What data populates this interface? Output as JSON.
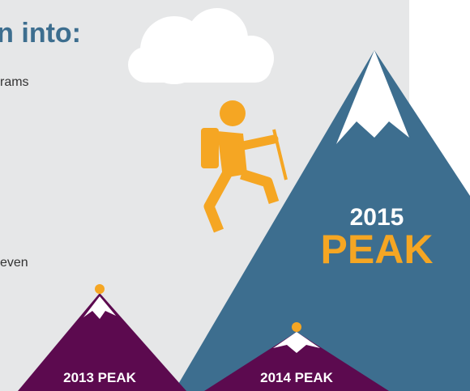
{
  "heading": "n into:",
  "text_lines": [
    "rams",
    "even"
  ],
  "peaks": [
    {
      "year": "2015",
      "label": "PEAK"
    },
    {
      "label": "2013 PEAK"
    },
    {
      "label": "2014 PEAK"
    }
  ]
}
